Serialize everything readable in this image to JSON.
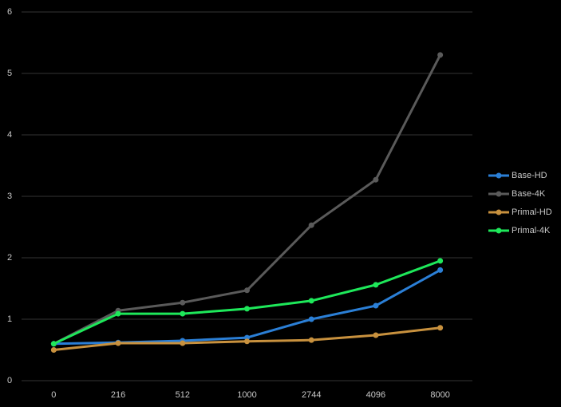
{
  "chart_data": {
    "type": "line",
    "categories": [
      "0",
      "216",
      "512",
      "1000",
      "2744",
      "4096",
      "8000"
    ],
    "series": [
      {
        "name": "Base-HD",
        "color": "#2b7fd6",
        "values": [
          0.6,
          0.62,
          0.65,
          0.7,
          1.0,
          1.22,
          1.8
        ]
      },
      {
        "name": "Base-4K",
        "color": "#5a5a5a",
        "values": [
          0.6,
          1.14,
          1.27,
          1.47,
          2.53,
          3.27,
          5.3
        ]
      },
      {
        "name": "Primal-HD",
        "color": "#c8913e",
        "values": [
          0.5,
          0.61,
          0.61,
          0.64,
          0.66,
          0.74,
          0.86
        ]
      },
      {
        "name": "Primal-4K",
        "color": "#1ee85a",
        "values": [
          0.6,
          1.09,
          1.09,
          1.17,
          1.3,
          1.56,
          1.95
        ]
      }
    ],
    "ylim": [
      0,
      6
    ],
    "yticks": [
      0,
      1,
      2,
      3,
      4,
      5,
      6
    ],
    "grid": true,
    "legend": "right"
  }
}
